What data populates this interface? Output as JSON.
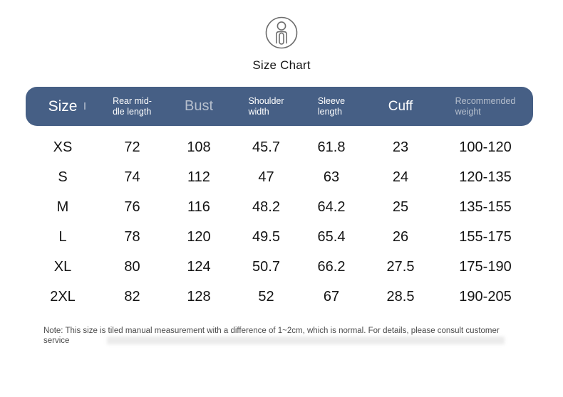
{
  "brand": {
    "icon": "person-figure-icon",
    "title": "Size Chart"
  },
  "colors": {
    "header_bg": "#465f85",
    "header_text": "#ffffff",
    "header_muted_text": "#b6bfcd",
    "body_text": "#141414",
    "note_text": "#4a4a4a",
    "icon_stroke": "#6e6e6e"
  },
  "table": {
    "columns": [
      {
        "id": "size",
        "lines": [
          "Size"
        ],
        "variant": "xl"
      },
      {
        "id": "rear-middle-length",
        "lines": [
          "Rear mid-",
          "dle length"
        ],
        "variant": "sm"
      },
      {
        "id": "bust",
        "lines": [
          "Bust"
        ],
        "variant": "lg-muted"
      },
      {
        "id": "shoulder-width",
        "lines": [
          "Shoulder",
          "width"
        ],
        "variant": "sm"
      },
      {
        "id": "sleeve-length",
        "lines": [
          "Sleeve",
          "length"
        ],
        "variant": "sm"
      },
      {
        "id": "cuff",
        "lines": [
          "Cuff"
        ],
        "variant": "lg"
      },
      {
        "id": "recommended-weight",
        "lines": [
          "Recommended",
          "weight"
        ],
        "variant": "sm-muted"
      }
    ],
    "rows": [
      [
        "XS",
        "72",
        "108",
        "45.7",
        "61.8",
        "23",
        "100-120"
      ],
      [
        "S",
        "74",
        "112",
        "47",
        "63",
        "24",
        "120-135"
      ],
      [
        "M",
        "76",
        "116",
        "48.2",
        "64.2",
        "25",
        "135-155"
      ],
      [
        "L",
        "78",
        "120",
        "49.5",
        "65.4",
        "26",
        "155-175"
      ],
      [
        "XL",
        "80",
        "124",
        "50.7",
        "66.2",
        "27.5",
        "175-190"
      ],
      [
        "2XL",
        "82",
        "128",
        "52",
        "67",
        "28.5",
        "190-205"
      ]
    ]
  },
  "note": {
    "text": "Note: This size is tiled manual measurement with a difference of 1~2cm, which is normal. For details, please consult customer service"
  }
}
